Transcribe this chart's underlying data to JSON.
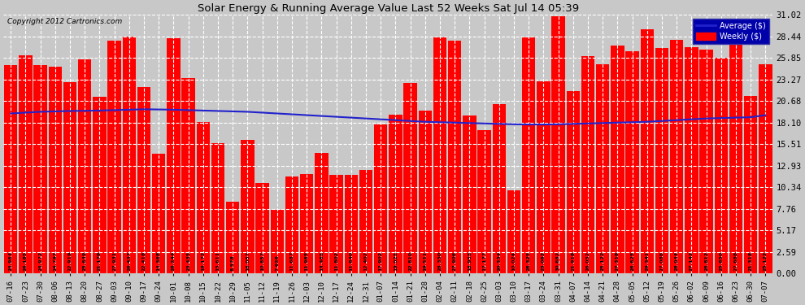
{
  "title": "Solar Energy & Running Average Value Last 52 Weeks Sat Jul 14 05:39",
  "copyright": "Copyright 2012 Cartronics.com",
  "bar_color": "#ff0000",
  "avg_line_color": "#2222cc",
  "background_color": "#c8c8c8",
  "plot_bg_color": "#c8c8c8",
  "grid_color": "#ffffff",
  "legend_labels": [
    "Average ($)",
    "Weekly ($)"
  ],
  "legend_bg": "#0000aa",
  "legend_text_color": "#ffffff",
  "ylim": [
    0,
    31.02
  ],
  "yticks": [
    0.0,
    2.59,
    5.17,
    7.76,
    10.34,
    12.93,
    15.51,
    18.1,
    20.68,
    23.27,
    25.85,
    28.44,
    31.02
  ],
  "categories": [
    "07-16",
    "07-23",
    "07-30",
    "08-06",
    "08-13",
    "08-20",
    "08-27",
    "09-03",
    "09-10",
    "09-17",
    "09-24",
    "10-01",
    "10-08",
    "10-15",
    "10-22",
    "10-29",
    "11-05",
    "11-12",
    "11-19",
    "11-26",
    "12-03",
    "12-10",
    "12-17",
    "12-24",
    "12-31",
    "01-07",
    "01-14",
    "01-21",
    "01-28",
    "02-04",
    "02-11",
    "02-18",
    "02-25",
    "03-03",
    "03-10",
    "03-17",
    "03-24",
    "03-31",
    "04-07",
    "04-14",
    "04-21",
    "04-28",
    "05-05",
    "05-12",
    "05-19",
    "05-26",
    "06-02",
    "06-09",
    "06-16",
    "06-23",
    "06-30",
    "07-07"
  ],
  "weekly_values": [
    24.964,
    26.185,
    24.972,
    24.797,
    22.919,
    25.649,
    21.178,
    27.931,
    28.437,
    22.418,
    14.368,
    28.244,
    23.435,
    18.172,
    15.611,
    8.578,
    16.057,
    10.857,
    7.626,
    11.687,
    11.965,
    14.465,
    11.802,
    11.84,
    12.402,
    17.902,
    19.025,
    22.81,
    19.511,
    28.35,
    27.906,
    18.955,
    17.177,
    20.334,
    10.024,
    28.325,
    23.062,
    30.882,
    21.918,
    26.052,
    25.122,
    27.318,
    26.625,
    29.341,
    27.088,
    28.044,
    27.142,
    26.812,
    25.85,
    27.688,
    21.318,
    25.122
  ],
  "avg_values": [
    19.2,
    19.3,
    19.4,
    19.45,
    19.5,
    19.52,
    19.55,
    19.6,
    19.65,
    19.7,
    19.68,
    19.65,
    19.6,
    19.55,
    19.5,
    19.45,
    19.4,
    19.3,
    19.2,
    19.1,
    19.0,
    18.9,
    18.8,
    18.7,
    18.6,
    18.5,
    18.4,
    18.3,
    18.2,
    18.15,
    18.1,
    18.05,
    18.0,
    17.95,
    17.9,
    17.88,
    17.88,
    17.9,
    17.95,
    18.0,
    18.05,
    18.1,
    18.15,
    18.2,
    18.3,
    18.4,
    18.5,
    18.6,
    18.65,
    18.7,
    18.75,
    19.0
  ]
}
